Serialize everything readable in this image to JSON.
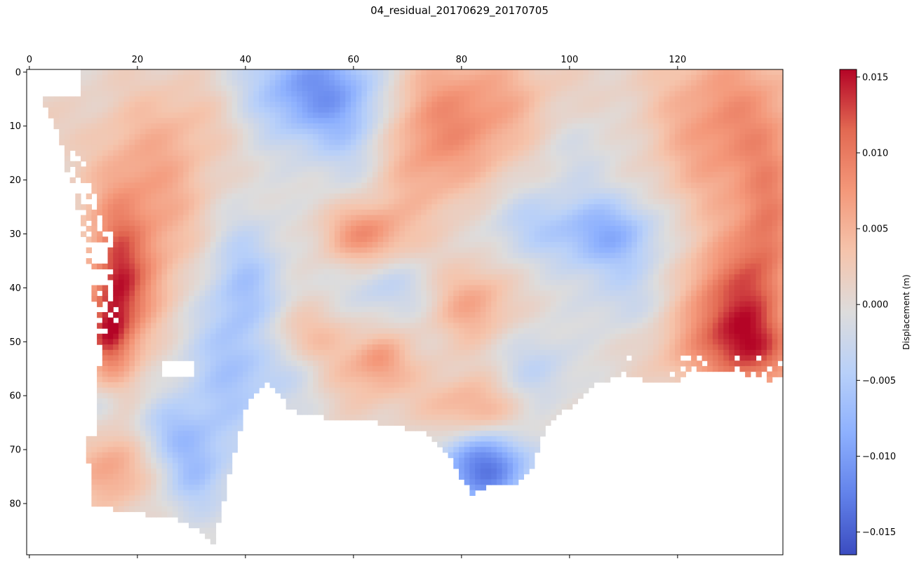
{
  "figure": {
    "title": "04_residual_20170629_20170705"
  },
  "chart_data": {
    "type": "heatmap",
    "title": "04_residual_20170629_20170705",
    "colormap": "coolwarm",
    "xlim": [
      -0.5,
      139.5
    ],
    "ylim": [
      89.5,
      -0.5
    ],
    "x_axis_position": "top",
    "x_ticks": [
      0,
      20,
      40,
      60,
      80,
      100,
      120
    ],
    "y_ticks": [
      0,
      10,
      20,
      30,
      40,
      50,
      60,
      70,
      80
    ],
    "grid": false,
    "colorbar": {
      "label": "Displacement (m)",
      "min": -0.0165,
      "max": 0.0155,
      "ticks": [
        0.015,
        0.01,
        0.005,
        0.0,
        -0.005,
        -0.01,
        -0.015
      ],
      "tick_labels": [
        "0.015",
        "0.010",
        "0.005",
        "0.000",
        "−0.005",
        "−0.010",
        "−0.015"
      ],
      "colors": [
        "#3b4cc0",
        "#6282ea",
        "#8db0fe",
        "#b8d0f9",
        "#dddcdc",
        "#f5c4ac",
        "#f4987a",
        "#e26952",
        "#b40426"
      ]
    },
    "grid_shape": [
      90,
      140
    ],
    "features_approx": [
      {
        "name": "strong positive band (west)",
        "x": [
          12,
          22
        ],
        "y": [
          30,
          54
        ],
        "value": 0.0145
      },
      {
        "name": "positive region (northwest)",
        "x": [
          10,
          30
        ],
        "y": [
          10,
          45
        ],
        "value": 0.009
      },
      {
        "name": "negative channel (north-center)",
        "x": [
          45,
          65
        ],
        "y": [
          0,
          10
        ],
        "value": -0.01
      },
      {
        "name": "positive region (north-east-center)",
        "x": [
          72,
          95
        ],
        "y": [
          0,
          20
        ],
        "value": 0.007
      },
      {
        "name": "positive region (northeast)",
        "x": [
          118,
          139
        ],
        "y": [
          0,
          25
        ],
        "value": 0.007
      },
      {
        "name": "negative patch (east-center)",
        "x": [
          100,
          115
        ],
        "y": [
          25,
          35
        ],
        "value": -0.008
      },
      {
        "name": "positive patch (east)",
        "x": [
          125,
          139
        ],
        "y": [
          35,
          57
        ],
        "value": 0.01
      },
      {
        "name": "positive patch (center)",
        "x": [
          58,
          70
        ],
        "y": [
          26,
          34
        ],
        "value": 0.007
      },
      {
        "name": "positive patch (south-center)",
        "x": [
          58,
          90
        ],
        "y": [
          46,
          64
        ],
        "value": 0.004
      },
      {
        "name": "negative lobe (south)",
        "x": [
          75,
          95
        ],
        "y": [
          68,
          79
        ],
        "value": -0.0135
      },
      {
        "name": "positive patch (southwest)",
        "x": [
          10,
          22
        ],
        "y": [
          68,
          80
        ],
        "value": 0.005
      }
    ]
  }
}
